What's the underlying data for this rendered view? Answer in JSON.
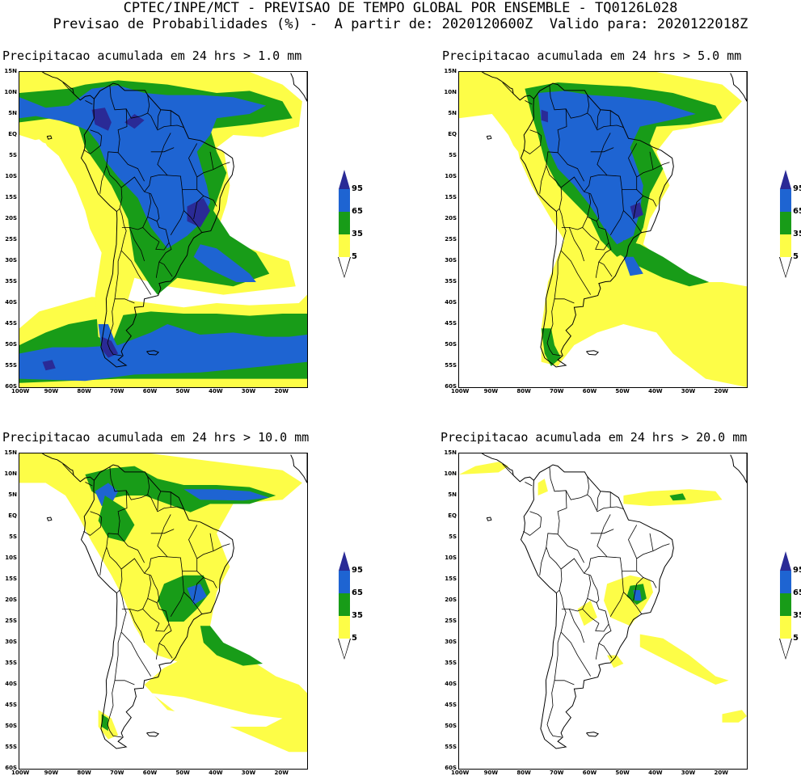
{
  "header": {
    "line1": "CPTEC/INPE/MCT - PREVISAO DE TEMPO GLOBAL POR ENSEMBLE - TQ0126L028",
    "line2": "Previsao de Probabilidades (%) -  A partir de: 2020120600Z  Valido para: 2020122018Z"
  },
  "colors": {
    "yellow": "#fdfd47",
    "green": "#189c18",
    "blue": "#1e64d2",
    "darkblue": "#2a2a96",
    "white": "#ffffff"
  },
  "axes": {
    "lat_labels": [
      "15N",
      "10N",
      "5N",
      "EQ",
      "5S",
      "10S",
      "15S",
      "20S",
      "25S",
      "30S",
      "35S",
      "40S",
      "45S",
      "50S",
      "55S",
      "60S"
    ],
    "lon_labels": [
      "100W",
      "90W",
      "80W",
      "70W",
      "60W",
      "50W",
      "40W",
      "30W",
      "20W"
    ]
  },
  "legend": {
    "labels": [
      "95",
      "65",
      "35",
      "5"
    ]
  },
  "panels": [
    {
      "title": "Precipitacao acumulada em 24 hrs > 1.0 mm"
    },
    {
      "title": "Precipitacao acumulada em 24 hrs > 5.0 mm"
    },
    {
      "title": "Precipitacao acumulada em 24 hrs > 10.0 mm"
    },
    {
      "title": "Precipitacao acumulada em 24 hrs > 20.0 mm"
    }
  ]
}
